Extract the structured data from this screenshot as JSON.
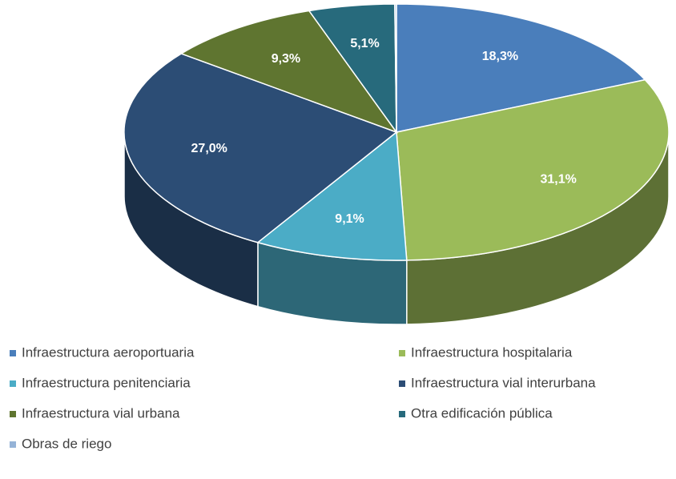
{
  "chart_data": {
    "type": "pie",
    "categories": [
      "Infraestructura aeroportuaria",
      "Infraestructura hospitalaria",
      "Infraestructura penitenciaria",
      "Infraestructura vial interurbana",
      "Infraestructura vial urbana",
      "Otra edificación pública",
      "Obras de riego"
    ],
    "values": [
      18.3,
      31.1,
      9.1,
      27.0,
      9.3,
      5.1,
      0.1
    ],
    "value_labels": [
      "18,3%",
      "31,1%",
      "9,1%",
      "27,0%",
      "9,3%",
      "5,1%",
      null
    ],
    "colors": [
      "#4a7ebb",
      "#9bbb59",
      "#4bacc6",
      "#2c4d75",
      "#5f7530",
      "#276a7c",
      "#95b3d7"
    ],
    "legend": "bottom"
  }
}
